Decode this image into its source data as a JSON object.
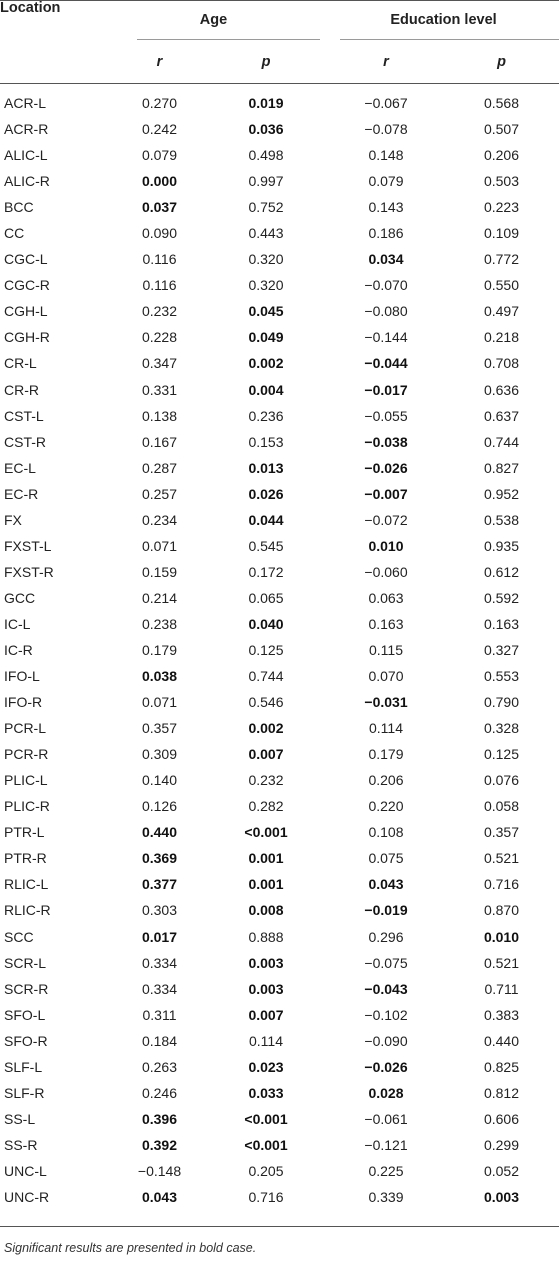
{
  "table": {
    "header": {
      "location": "Location",
      "age": "Age",
      "education": "Education level",
      "r": "r",
      "p": "p"
    },
    "rows": [
      {
        "loc": "ACR-L",
        "age_r": "0.270",
        "age_r_b": false,
        "age_p": "0.019",
        "age_p_b": true,
        "edu_r": "−0.067",
        "edu_r_b": false,
        "edu_p": "0.568",
        "edu_p_b": false
      },
      {
        "loc": "ACR-R",
        "age_r": "0.242",
        "age_r_b": false,
        "age_p": "0.036",
        "age_p_b": true,
        "edu_r": "−0.078",
        "edu_r_b": false,
        "edu_p": "0.507",
        "edu_p_b": false
      },
      {
        "loc": "ALIC-L",
        "age_r": "0.079",
        "age_r_b": false,
        "age_p": "0.498",
        "age_p_b": false,
        "edu_r": "0.148",
        "edu_r_b": false,
        "edu_p": "0.206",
        "edu_p_b": false
      },
      {
        "loc": "ALIC-R",
        "age_r": "0.000",
        "age_r_b": true,
        "age_p": "0.997",
        "age_p_b": false,
        "edu_r": "0.079",
        "edu_r_b": false,
        "edu_p": "0.503",
        "edu_p_b": false
      },
      {
        "loc": "BCC",
        "age_r": "0.037",
        "age_r_b": true,
        "age_p": "0.752",
        "age_p_b": false,
        "edu_r": "0.143",
        "edu_r_b": false,
        "edu_p": "0.223",
        "edu_p_b": false
      },
      {
        "loc": "CC",
        "age_r": "0.090",
        "age_r_b": false,
        "age_p": "0.443",
        "age_p_b": false,
        "edu_r": "0.186",
        "edu_r_b": false,
        "edu_p": "0.109",
        "edu_p_b": false
      },
      {
        "loc": "CGC-L",
        "age_r": "0.116",
        "age_r_b": false,
        "age_p": "0.320",
        "age_p_b": false,
        "edu_r": "0.034",
        "edu_r_b": true,
        "edu_p": "0.772",
        "edu_p_b": false
      },
      {
        "loc": "CGC-R",
        "age_r": "0.116",
        "age_r_b": false,
        "age_p": "0.320",
        "age_p_b": false,
        "edu_r": "−0.070",
        "edu_r_b": false,
        "edu_p": "0.550",
        "edu_p_b": false
      },
      {
        "loc": "CGH-L",
        "age_r": "0.232",
        "age_r_b": false,
        "age_p": "0.045",
        "age_p_b": true,
        "edu_r": "−0.080",
        "edu_r_b": false,
        "edu_p": "0.497",
        "edu_p_b": false
      },
      {
        "loc": "CGH-R",
        "age_r": "0.228",
        "age_r_b": false,
        "age_p": "0.049",
        "age_p_b": true,
        "edu_r": "−0.144",
        "edu_r_b": false,
        "edu_p": "0.218",
        "edu_p_b": false
      },
      {
        "loc": "CR-L",
        "age_r": "0.347",
        "age_r_b": false,
        "age_p": "0.002",
        "age_p_b": true,
        "edu_r": "−0.044",
        "edu_r_b": true,
        "edu_p": "0.708",
        "edu_p_b": false
      },
      {
        "loc": "CR-R",
        "age_r": "0.331",
        "age_r_b": false,
        "age_p": "0.004",
        "age_p_b": true,
        "edu_r": "−0.017",
        "edu_r_b": true,
        "edu_p": "0.636",
        "edu_p_b": false
      },
      {
        "loc": "CST-L",
        "age_r": "0.138",
        "age_r_b": false,
        "age_p": "0.236",
        "age_p_b": false,
        "edu_r": "−0.055",
        "edu_r_b": false,
        "edu_p": "0.637",
        "edu_p_b": false
      },
      {
        "loc": "CST-R",
        "age_r": "0.167",
        "age_r_b": false,
        "age_p": "0.153",
        "age_p_b": false,
        "edu_r": "−0.038",
        "edu_r_b": true,
        "edu_p": "0.744",
        "edu_p_b": false
      },
      {
        "loc": "EC-L",
        "age_r": "0.287",
        "age_r_b": false,
        "age_p": "0.013",
        "age_p_b": true,
        "edu_r": "−0.026",
        "edu_r_b": true,
        "edu_p": "0.827",
        "edu_p_b": false
      },
      {
        "loc": "EC-R",
        "age_r": "0.257",
        "age_r_b": false,
        "age_p": "0.026",
        "age_p_b": true,
        "edu_r": "−0.007",
        "edu_r_b": true,
        "edu_p": "0.952",
        "edu_p_b": false
      },
      {
        "loc": "FX",
        "age_r": "0.234",
        "age_r_b": false,
        "age_p": "0.044",
        "age_p_b": true,
        "edu_r": "−0.072",
        "edu_r_b": false,
        "edu_p": "0.538",
        "edu_p_b": false
      },
      {
        "loc": "FXST-L",
        "age_r": "0.071",
        "age_r_b": false,
        "age_p": "0.545",
        "age_p_b": false,
        "edu_r": "0.010",
        "edu_r_b": true,
        "edu_p": "0.935",
        "edu_p_b": false
      },
      {
        "loc": "FXST-R",
        "age_r": "0.159",
        "age_r_b": false,
        "age_p": "0.172",
        "age_p_b": false,
        "edu_r": "−0.060",
        "edu_r_b": false,
        "edu_p": "0.612",
        "edu_p_b": false
      },
      {
        "loc": "GCC",
        "age_r": "0.214",
        "age_r_b": false,
        "age_p": "0.065",
        "age_p_b": false,
        "edu_r": "0.063",
        "edu_r_b": false,
        "edu_p": "0.592",
        "edu_p_b": false
      },
      {
        "loc": "IC-L",
        "age_r": "0.238",
        "age_r_b": false,
        "age_p": "0.040",
        "age_p_b": true,
        "edu_r": "0.163",
        "edu_r_b": false,
        "edu_p": "0.163",
        "edu_p_b": false
      },
      {
        "loc": "IC-R",
        "age_r": "0.179",
        "age_r_b": false,
        "age_p": "0.125",
        "age_p_b": false,
        "edu_r": "0.115",
        "edu_r_b": false,
        "edu_p": "0.327",
        "edu_p_b": false
      },
      {
        "loc": "IFO-L",
        "age_r": "0.038",
        "age_r_b": true,
        "age_p": "0.744",
        "age_p_b": false,
        "edu_r": "0.070",
        "edu_r_b": false,
        "edu_p": "0.553",
        "edu_p_b": false
      },
      {
        "loc": "IFO-R",
        "age_r": "0.071",
        "age_r_b": false,
        "age_p": "0.546",
        "age_p_b": false,
        "edu_r": "−0.031",
        "edu_r_b": true,
        "edu_p": "0.790",
        "edu_p_b": false
      },
      {
        "loc": "PCR-L",
        "age_r": "0.357",
        "age_r_b": false,
        "age_p": "0.002",
        "age_p_b": true,
        "edu_r": "0.114",
        "edu_r_b": false,
        "edu_p": "0.328",
        "edu_p_b": false
      },
      {
        "loc": "PCR-R",
        "age_r": "0.309",
        "age_r_b": false,
        "age_p": "0.007",
        "age_p_b": true,
        "edu_r": "0.179",
        "edu_r_b": false,
        "edu_p": "0.125",
        "edu_p_b": false
      },
      {
        "loc": "PLIC-L",
        "age_r": "0.140",
        "age_r_b": false,
        "age_p": "0.232",
        "age_p_b": false,
        "edu_r": "0.206",
        "edu_r_b": false,
        "edu_p": "0.076",
        "edu_p_b": false
      },
      {
        "loc": "PLIC-R",
        "age_r": "0.126",
        "age_r_b": false,
        "age_p": "0.282",
        "age_p_b": false,
        "edu_r": "0.220",
        "edu_r_b": false,
        "edu_p": "0.058",
        "edu_p_b": false
      },
      {
        "loc": "PTR-L",
        "age_r": "0.440",
        "age_r_b": true,
        "age_p": "<0.001",
        "age_p_b": true,
        "edu_r": "0.108",
        "edu_r_b": false,
        "edu_p": "0.357",
        "edu_p_b": false
      },
      {
        "loc": "PTR-R",
        "age_r": "0.369",
        "age_r_b": true,
        "age_p": "0.001",
        "age_p_b": true,
        "edu_r": "0.075",
        "edu_r_b": false,
        "edu_p": "0.521",
        "edu_p_b": false
      },
      {
        "loc": "RLIC-L",
        "age_r": "0.377",
        "age_r_b": true,
        "age_p": "0.001",
        "age_p_b": true,
        "edu_r": "0.043",
        "edu_r_b": true,
        "edu_p": "0.716",
        "edu_p_b": false
      },
      {
        "loc": "RLIC-R",
        "age_r": "0.303",
        "age_r_b": false,
        "age_p": "0.008",
        "age_p_b": true,
        "edu_r": "−0.019",
        "edu_r_b": true,
        "edu_p": "0.870",
        "edu_p_b": false
      },
      {
        "loc": "SCC",
        "age_r": "0.017",
        "age_r_b": true,
        "age_p": "0.888",
        "age_p_b": false,
        "edu_r": "0.296",
        "edu_r_b": false,
        "edu_p": "0.010",
        "edu_p_b": true
      },
      {
        "loc": "SCR-L",
        "age_r": "0.334",
        "age_r_b": false,
        "age_p": "0.003",
        "age_p_b": true,
        "edu_r": "−0.075",
        "edu_r_b": false,
        "edu_p": "0.521",
        "edu_p_b": false
      },
      {
        "loc": "SCR-R",
        "age_r": "0.334",
        "age_r_b": false,
        "age_p": "0.003",
        "age_p_b": true,
        "edu_r": "−0.043",
        "edu_r_b": true,
        "edu_p": "0.711",
        "edu_p_b": false
      },
      {
        "loc": "SFO-L",
        "age_r": "0.311",
        "age_r_b": false,
        "age_p": "0.007",
        "age_p_b": true,
        "edu_r": "−0.102",
        "edu_r_b": false,
        "edu_p": "0.383",
        "edu_p_b": false
      },
      {
        "loc": "SFO-R",
        "age_r": "0.184",
        "age_r_b": false,
        "age_p": "0.114",
        "age_p_b": false,
        "edu_r": "−0.090",
        "edu_r_b": false,
        "edu_p": "0.440",
        "edu_p_b": false
      },
      {
        "loc": "SLF-L",
        "age_r": "0.263",
        "age_r_b": false,
        "age_p": "0.023",
        "age_p_b": true,
        "edu_r": "−0.026",
        "edu_r_b": true,
        "edu_p": "0.825",
        "edu_p_b": false
      },
      {
        "loc": "SLF-R",
        "age_r": "0.246",
        "age_r_b": false,
        "age_p": "0.033",
        "age_p_b": true,
        "edu_r": "0.028",
        "edu_r_b": true,
        "edu_p": "0.812",
        "edu_p_b": false
      },
      {
        "loc": "SS-L",
        "age_r": "0.396",
        "age_r_b": true,
        "age_p": "<0.001",
        "age_p_b": true,
        "edu_r": "−0.061",
        "edu_r_b": false,
        "edu_p": "0.606",
        "edu_p_b": false
      },
      {
        "loc": "SS-R",
        "age_r": "0.392",
        "age_r_b": true,
        "age_p": "<0.001",
        "age_p_b": true,
        "edu_r": "−0.121",
        "edu_r_b": false,
        "edu_p": "0.299",
        "edu_p_b": false
      },
      {
        "loc": "UNC-L",
        "age_r": "−0.148",
        "age_r_b": false,
        "age_p": "0.205",
        "age_p_b": false,
        "edu_r": "0.225",
        "edu_r_b": false,
        "edu_p": "0.052",
        "edu_p_b": false
      },
      {
        "loc": "UNC-R",
        "age_r": "0.043",
        "age_r_b": true,
        "age_p": "0.716",
        "age_p_b": false,
        "edu_r": "0.339",
        "edu_r_b": false,
        "edu_p": "0.003",
        "edu_p_b": true
      }
    ],
    "footnote": "Significant results are presented in bold case."
  }
}
